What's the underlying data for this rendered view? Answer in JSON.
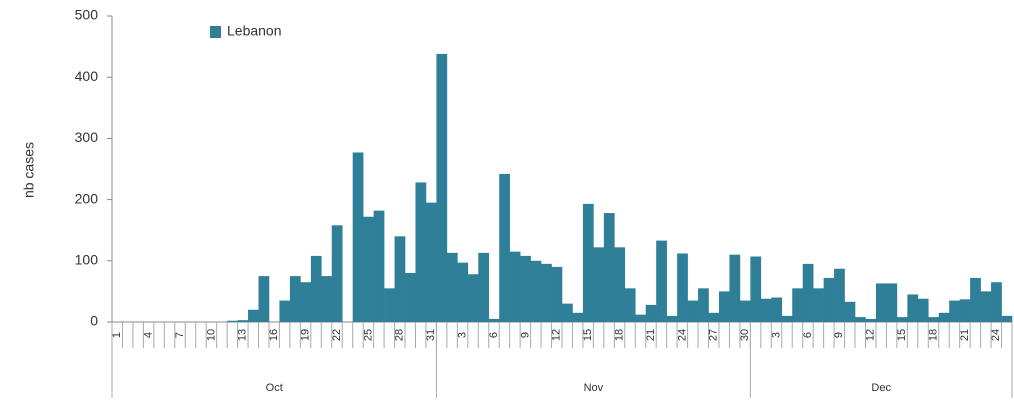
{
  "chart_data": {
    "type": "bar",
    "ylabel": "nb cases",
    "legend": "top-left",
    "series": [
      {
        "name": "Lebanon",
        "color": "#2f7f98",
        "values": [
          0,
          0,
          0,
          0,
          0,
          0,
          0,
          0,
          0,
          0,
          0,
          2,
          3,
          20,
          75,
          0,
          35,
          75,
          65,
          108,
          75,
          158,
          0,
          277,
          172,
          182,
          55,
          140,
          80,
          228,
          195,
          438,
          113,
          97,
          78,
          113,
          5,
          242,
          115,
          108,
          100,
          95,
          90,
          30,
          15,
          193,
          122,
          178,
          122,
          55,
          12,
          28,
          133,
          10,
          112,
          35,
          55,
          15,
          50,
          110,
          35,
          107,
          38,
          40,
          10,
          55,
          95,
          55,
          72,
          87,
          33,
          8,
          5,
          63,
          63,
          8,
          45,
          38,
          8,
          15,
          35,
          37,
          72,
          50,
          65,
          10
        ]
      }
    ],
    "categories": [
      "1",
      null,
      null,
      "4",
      null,
      null,
      "7",
      null,
      null,
      "10",
      null,
      null,
      "13",
      null,
      null,
      "16",
      null,
      null,
      "19",
      null,
      null,
      "22",
      null,
      null,
      "25",
      null,
      null,
      "28",
      null,
      null,
      "31",
      null,
      null,
      "3",
      null,
      null,
      "6",
      null,
      null,
      "9",
      null,
      null,
      "12",
      null,
      null,
      "15",
      null,
      null,
      "18",
      null,
      null,
      "21",
      null,
      null,
      "24",
      null,
      null,
      "27",
      null,
      null,
      "30",
      null,
      null,
      "3",
      null,
      null,
      "6",
      null,
      null,
      "9",
      null,
      null,
      "12",
      null,
      null,
      "15",
      null,
      null,
      "18",
      null,
      null,
      "21",
      null,
      null,
      "24",
      null
    ],
    "months": [
      "Oct",
      "Nov",
      "Dec"
    ],
    "ylim": [
      0,
      500
    ],
    "yticks": [
      0,
      100,
      200,
      300,
      400,
      500
    ],
    "grid": false
  }
}
